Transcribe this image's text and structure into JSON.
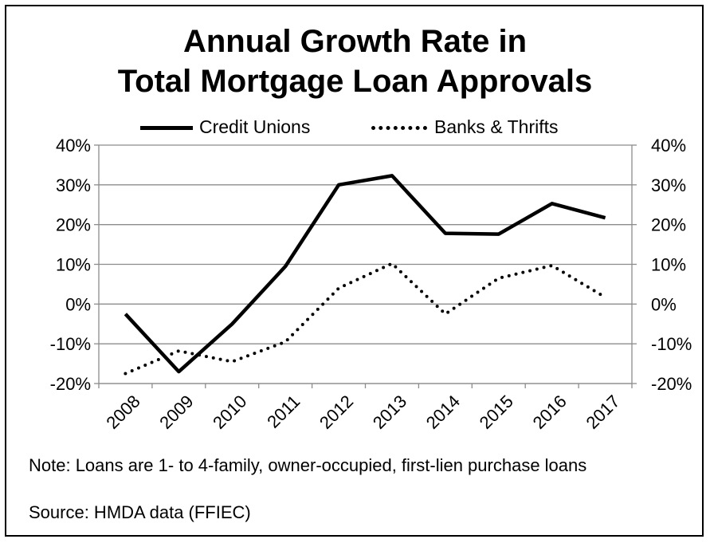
{
  "chart_data": {
    "type": "line",
    "title_line1": "Annual Growth Rate in",
    "title_line2": "Total Mortgage Loan Approvals",
    "categories": [
      "2008",
      "2009",
      "2010",
      "2011",
      "2012",
      "2013",
      "2014",
      "2015",
      "2016",
      "2017"
    ],
    "series": [
      {
        "name": "Credit Unions",
        "style": "solid",
        "color": "#000000",
        "values": [
          -2.5,
          -17,
          -5,
          9.5,
          30,
          32.3,
          17.8,
          17.6,
          25.3,
          21.7
        ]
      },
      {
        "name": "Banks & Thrifts",
        "style": "dotted",
        "color": "#000000",
        "values": [
          -17.5,
          -11.8,
          -14.5,
          -9.5,
          4,
          10.2,
          -2.5,
          6.5,
          9.7,
          1.7
        ]
      }
    ],
    "yaxis_left": {
      "ylim": [
        -20,
        40
      ],
      "ticks": [
        40,
        30,
        20,
        10,
        0,
        -10,
        -20
      ],
      "tick_labels": [
        "40%",
        "30%",
        "20%",
        "10%",
        "0%",
        "-10%",
        "-20%"
      ]
    },
    "yaxis_right": {
      "ylim": [
        -20,
        40
      ],
      "ticks": [
        40,
        30,
        20,
        10,
        0,
        -10,
        -20
      ],
      "tick_labels": [
        "40%",
        "30%",
        "20%",
        "10%",
        "0%",
        "-10%",
        "-20%"
      ]
    },
    "grid": "horizontal",
    "legend_position": "top"
  },
  "notes": {
    "note": "Note: Loans are 1- to 4-family, owner-occupied, first-lien purchase loans",
    "source": "Source: HMDA data (FFIEC)"
  }
}
